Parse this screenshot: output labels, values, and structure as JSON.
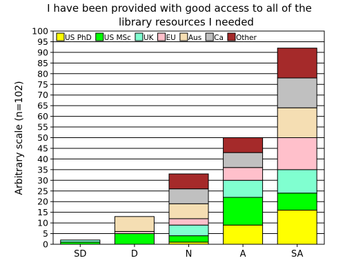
{
  "chart_data": {
    "type": "bar",
    "stacked": true,
    "title_lines": [
      "I have been provided with good access to all of the",
      "library resources I needed"
    ],
    "xlabel": "",
    "ylabel": "Arbitrary scale (n=102)",
    "ylim": [
      0,
      100
    ],
    "yticks": [
      0,
      5,
      10,
      15,
      20,
      25,
      30,
      35,
      40,
      45,
      50,
      55,
      60,
      65,
      70,
      75,
      80,
      85,
      90,
      95,
      100
    ],
    "grid": true,
    "legend_position": "top",
    "categories": [
      "SD",
      "D",
      "N",
      "A",
      "SA"
    ],
    "series": [
      {
        "name": "US PhD",
        "color": "#ffff00",
        "values": [
          0,
          0,
          1,
          9,
          16
        ]
      },
      {
        "name": "US MSc",
        "color": "#00ff00",
        "values": [
          1,
          5,
          3,
          13,
          8
        ]
      },
      {
        "name": "UK",
        "color": "#80ffd0",
        "values": [
          1,
          0,
          5,
          8,
          11
        ]
      },
      {
        "name": "EU",
        "color": "#ffc0cb",
        "values": [
          0,
          1,
          3,
          6,
          15
        ]
      },
      {
        "name": "Aus",
        "color": "#f5deb3",
        "values": [
          0,
          7,
          7,
          0,
          14
        ]
      },
      {
        "name": "Ca",
        "color": "#c0c0c0",
        "values": [
          0,
          0,
          7,
          7,
          14
        ]
      },
      {
        "name": "Other",
        "color": "#a52a2a",
        "values": [
          0,
          0,
          7,
          7,
          14
        ]
      }
    ]
  }
}
